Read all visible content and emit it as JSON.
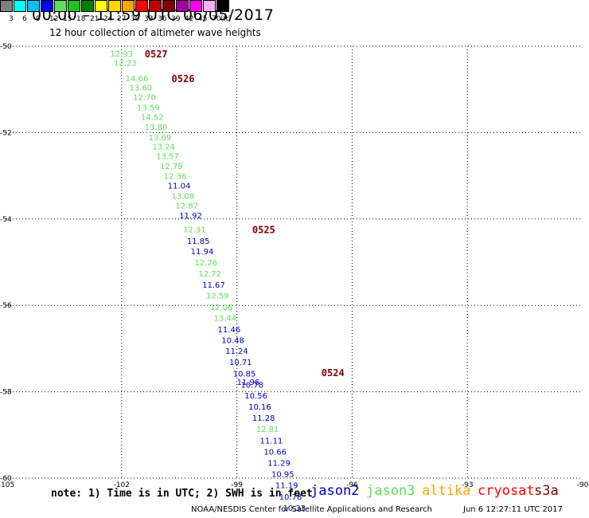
{
  "header": {
    "title": "00:00 – 11:59 UTC 06/05/2017",
    "subtitle": "12 hour collection of altimeter wave heights"
  },
  "legend": {
    "unit": "(ft)",
    "bins": [
      {
        "label": "3",
        "color": "#808080"
      },
      {
        "label": "6",
        "color": "#00ffff"
      },
      {
        "label": "9",
        "color": "#00bfff"
      },
      {
        "label": "12",
        "color": "#0000ff"
      },
      {
        "label": "15",
        "color": "#5ee05e"
      },
      {
        "label": "18",
        "color": "#22c022"
      },
      {
        "label": "21",
        "color": "#008000"
      },
      {
        "label": "24",
        "color": "#ffff00"
      },
      {
        "label": "27",
        "color": "#ffd700"
      },
      {
        "label": "30",
        "color": "#ffa500"
      },
      {
        "label": "33",
        "color": "#ff0000"
      },
      {
        "label": "36",
        "color": "#c00000"
      },
      {
        "label": "39",
        "color": "#800000"
      },
      {
        "label": "42",
        "color": "#a000a0"
      },
      {
        "label": "45",
        "color": "#ff00ff"
      },
      {
        "label": "70",
        "color": "#ffb0ff"
      },
      {
        "label": "",
        "color": "#000000"
      }
    ]
  },
  "map": {
    "lon_ticks": [
      "-105",
      "-102",
      "-99",
      "-96",
      "-93",
      "-90"
    ],
    "lat_ticks": [
      "-50",
      "-52",
      "-54",
      "-56",
      "-58",
      "-60"
    ],
    "lon_range": [
      -105,
      -90
    ],
    "lat_range": [
      -50,
      -60
    ]
  },
  "chart_data": {
    "type": "scatter",
    "series": [
      {
        "name": "jason2",
        "color": "#0000c0"
      },
      {
        "name": "jason3",
        "color": "#5ee05e"
      },
      {
        "name": "altika",
        "color": "#ffa500"
      },
      {
        "name": "cryosat",
        "color": "#ff0000"
      },
      {
        "name": "s3a",
        "color": "#800000"
      }
    ],
    "day_markers": [
      {
        "label": "0527",
        "lon": -101.4,
        "lat": -50.17
      },
      {
        "label": "0526",
        "lon": -100.7,
        "lat": -50.74
      },
      {
        "label": "0525",
        "lon": -98.6,
        "lat": -54.23
      },
      {
        "label": "0524",
        "lon": -96.8,
        "lat": -57.55
      }
    ],
    "points": [
      {
        "v": "12.93",
        "s": "jason3",
        "lon": -102.3,
        "lat": -50.17
      },
      {
        "v": "12.23",
        "s": "jason3",
        "lon": -102.2,
        "lat": -50.38
      },
      {
        "v": "14.66",
        "s": "jason3",
        "lon": -101.9,
        "lat": -50.74
      },
      {
        "v": "13.60",
        "s": "jason3",
        "lon": -101.8,
        "lat": -50.95
      },
      {
        "v": "12.70",
        "s": "jason3",
        "lon": -101.7,
        "lat": -51.17
      },
      {
        "v": "13.59",
        "s": "jason3",
        "lon": -101.6,
        "lat": -51.41
      },
      {
        "v": "14.52",
        "s": "jason3",
        "lon": -101.5,
        "lat": -51.63
      },
      {
        "v": "13.80",
        "s": "jason3",
        "lon": -101.4,
        "lat": -51.86
      },
      {
        "v": "13.69",
        "s": "jason3",
        "lon": -101.3,
        "lat": -52.1
      },
      {
        "v": "13.24",
        "s": "jason3",
        "lon": -101.2,
        "lat": -52.32
      },
      {
        "v": "13.57",
        "s": "jason3",
        "lon": -101.1,
        "lat": -52.54
      },
      {
        "v": "12.79",
        "s": "jason3",
        "lon": -101.0,
        "lat": -52.77
      },
      {
        "v": "12.36",
        "s": "jason3",
        "lon": -100.9,
        "lat": -53.0
      },
      {
        "v": "11.04",
        "s": "jason2",
        "lon": -100.8,
        "lat": -53.22
      },
      {
        "v": "13.08",
        "s": "jason3",
        "lon": -100.7,
        "lat": -53.46
      },
      {
        "v": "12.87",
        "s": "jason3",
        "lon": -100.6,
        "lat": -53.68
      },
      {
        "v": "11.92",
        "s": "jason2",
        "lon": -100.5,
        "lat": -53.91
      },
      {
        "v": "12.31",
        "s": "jason3",
        "lon": -100.4,
        "lat": -54.23
      },
      {
        "v": "11.85",
        "s": "jason2",
        "lon": -100.3,
        "lat": -54.5
      },
      {
        "v": "11.94",
        "s": "jason2",
        "lon": -100.2,
        "lat": -54.74
      },
      {
        "v": "12.26",
        "s": "jason3",
        "lon": -100.1,
        "lat": -55.0
      },
      {
        "v": "12.72",
        "s": "jason3",
        "lon": -100.0,
        "lat": -55.26
      },
      {
        "v": "11.67",
        "s": "jason2",
        "lon": -99.9,
        "lat": -55.52
      },
      {
        "v": "12.59",
        "s": "jason3",
        "lon": -99.8,
        "lat": -55.77
      },
      {
        "v": "12.08",
        "s": "jason3",
        "lon": -99.7,
        "lat": -56.03
      },
      {
        "v": "13.44",
        "s": "jason3",
        "lon": -99.6,
        "lat": -56.28
      },
      {
        "v": "11.46",
        "s": "jason2",
        "lon": -99.5,
        "lat": -56.55
      },
      {
        "v": "10.48",
        "s": "jason2",
        "lon": -99.4,
        "lat": -56.8
      },
      {
        "v": "11.24",
        "s": "jason2",
        "lon": -99.3,
        "lat": -57.05
      },
      {
        "v": "10.71",
        "s": "jason2",
        "lon": -99.2,
        "lat": -57.31
      },
      {
        "v": "10.85",
        "s": "jason2",
        "lon": -99.1,
        "lat": -57.57
      },
      {
        "v": "11.96",
        "s": "jason2",
        "lon": -99.0,
        "lat": -57.77
      },
      {
        "v": "10.78",
        "s": "jason2",
        "lon": -98.9,
        "lat": -57.83
      },
      {
        "v": "10.56",
        "s": "jason2",
        "lon": -98.8,
        "lat": -58.08
      },
      {
        "v": "10.16",
        "s": "jason2",
        "lon": -98.7,
        "lat": -58.34
      },
      {
        "v": "11.28",
        "s": "jason2",
        "lon": -98.6,
        "lat": -58.6
      },
      {
        "v": "12.81",
        "s": "jason3",
        "lon": -98.5,
        "lat": -58.86
      },
      {
        "v": "11.11",
        "s": "jason2",
        "lon": -98.4,
        "lat": -59.12
      },
      {
        "v": "10.66",
        "s": "jason2",
        "lon": -98.3,
        "lat": -59.38
      },
      {
        "v": "11.29",
        "s": "jason2",
        "lon": -98.2,
        "lat": -59.64
      },
      {
        "v": "10.95",
        "s": "jason2",
        "lon": -98.1,
        "lat": -59.9
      },
      {
        "v": "11.19",
        "s": "jason2",
        "lon": -98.0,
        "lat": -60.16
      },
      {
        "v": "10.78",
        "s": "jason2",
        "lon": -97.9,
        "lat": -60.42
      },
      {
        "v": "10.33",
        "s": "jason2",
        "lon": -97.8,
        "lat": -60.68
      }
    ]
  },
  "footer": {
    "note": "note: 1) Time is in UTC; 2) SWH is in feet",
    "credit": "NOAA/NESDIS Center for Satellite Applications and Research",
    "timestamp": "Jun  6 12:27:11 UTC 2017"
  }
}
